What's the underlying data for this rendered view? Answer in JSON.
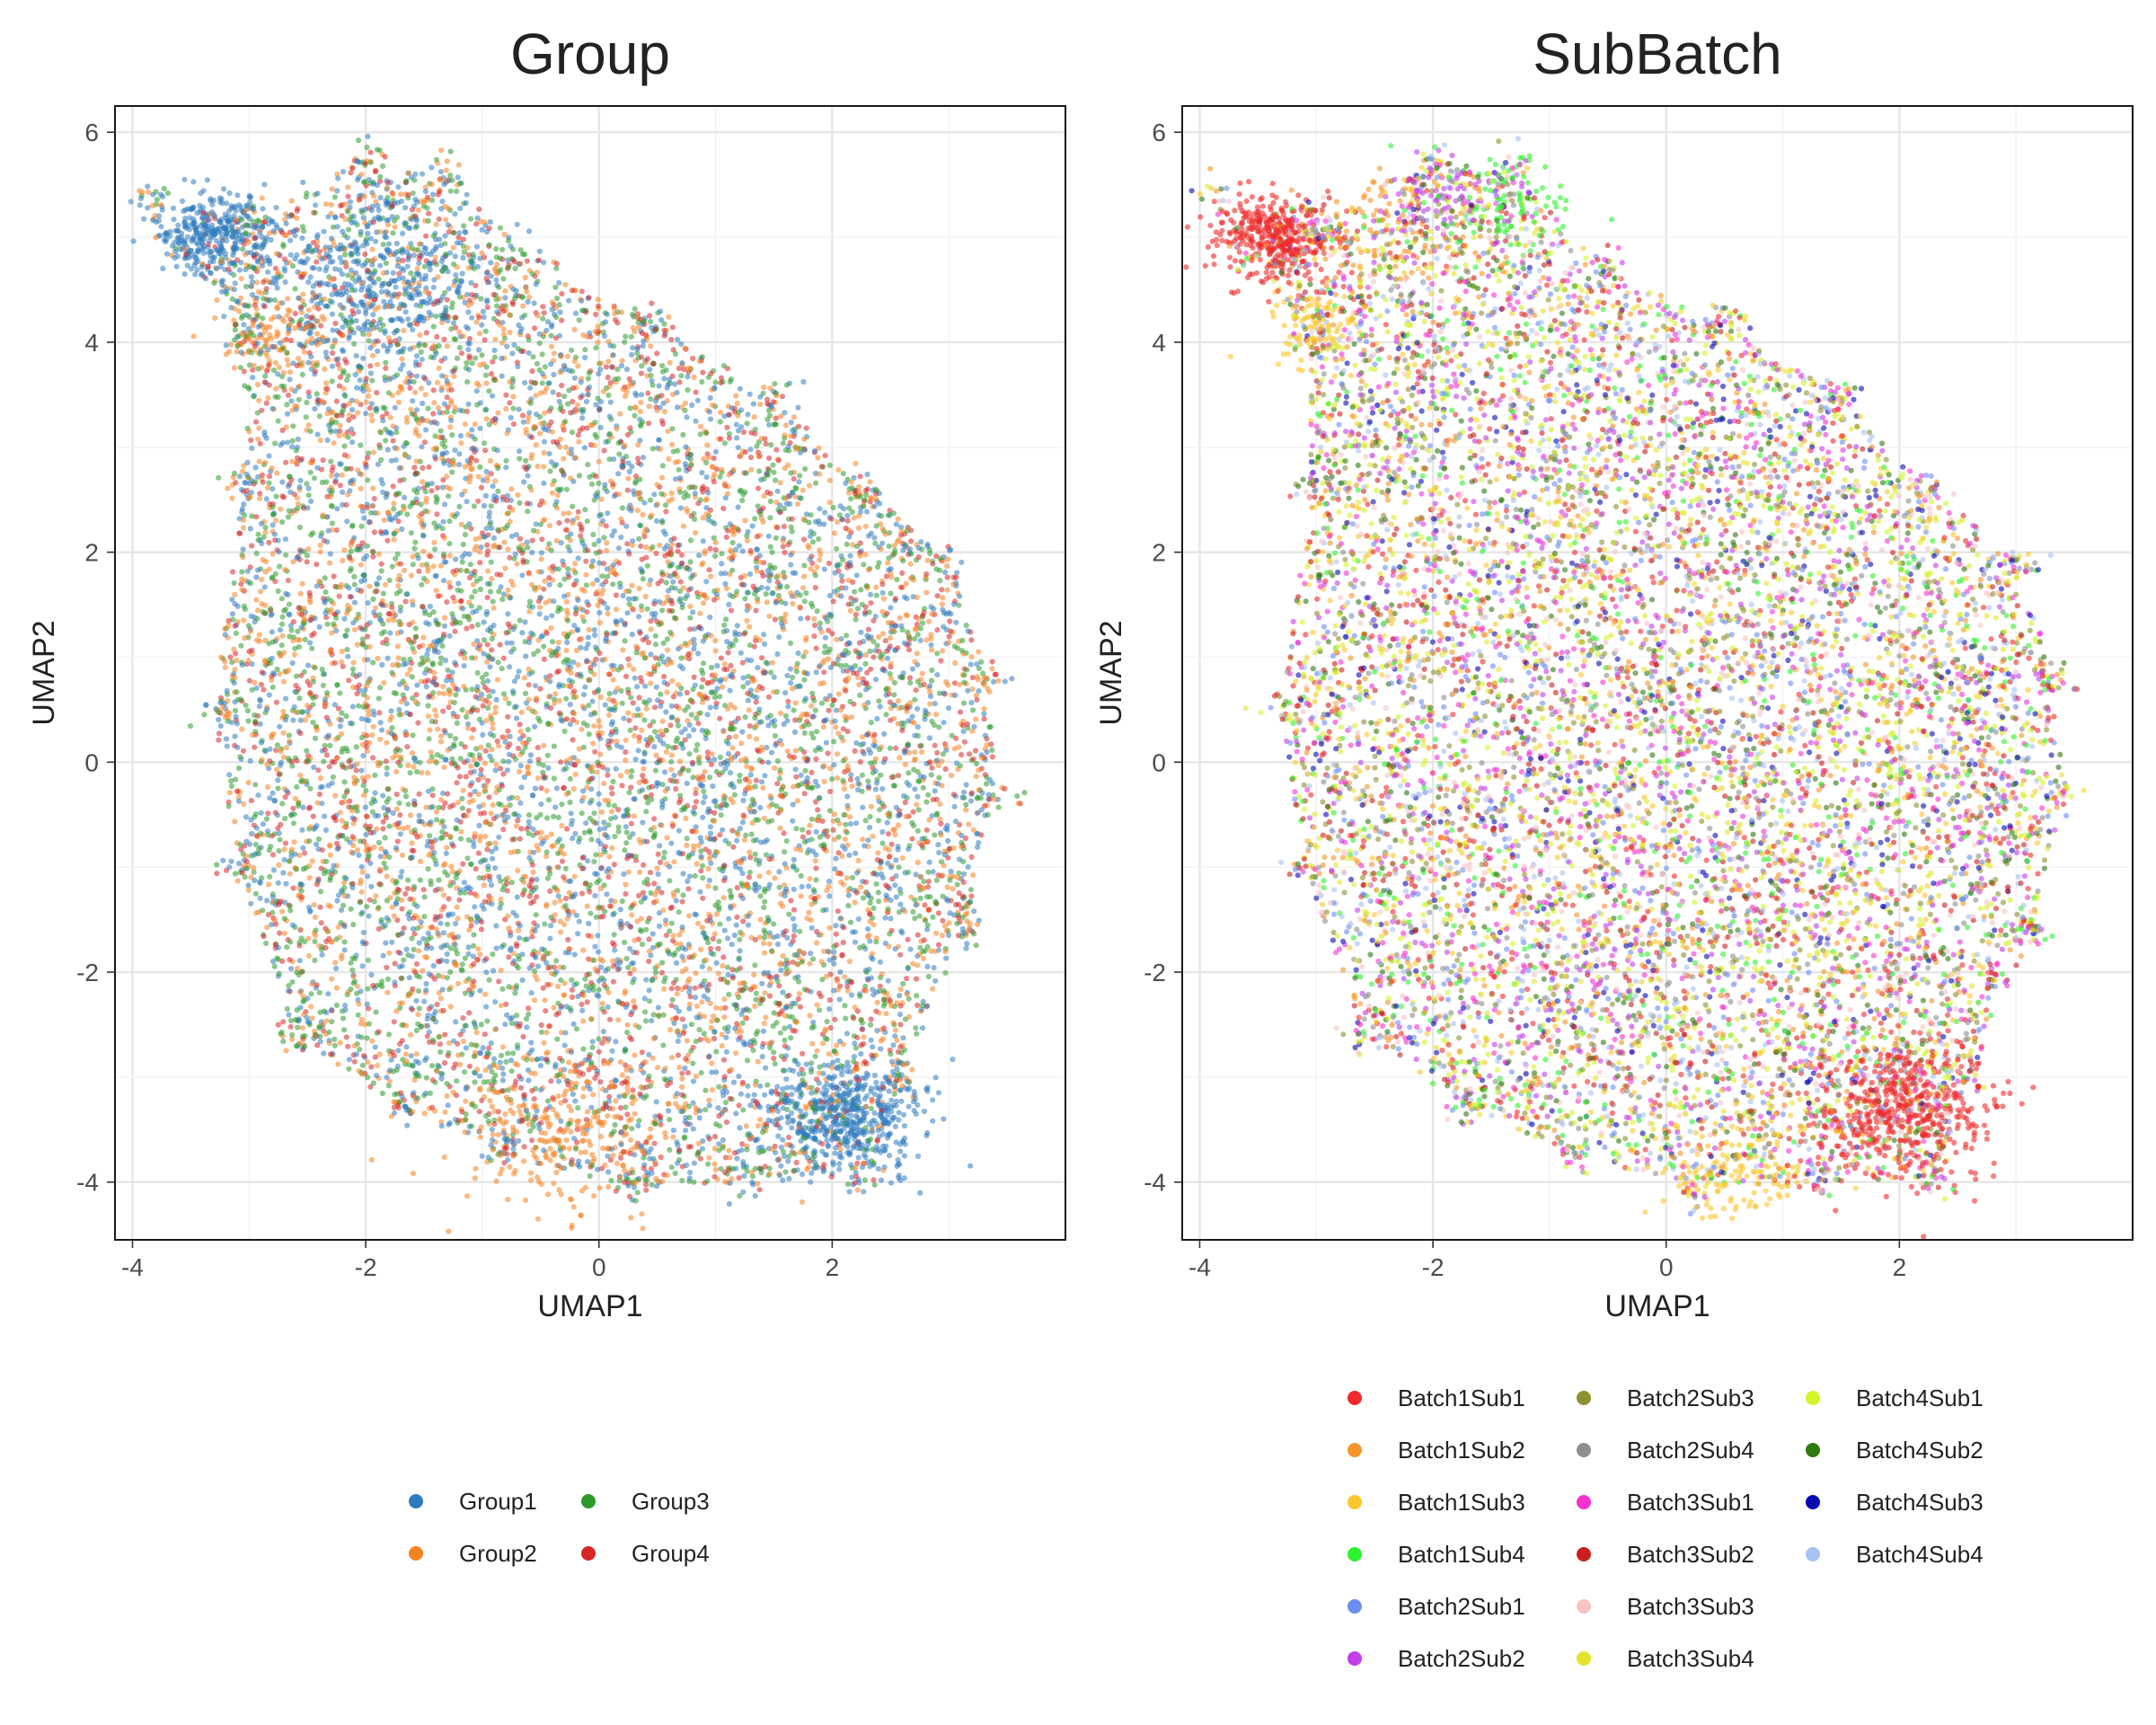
{
  "chart_data": [
    {
      "type": "scatter",
      "title": "Group",
      "xlabel": "UMAP1",
      "ylabel": "UMAP2",
      "xlim": [
        -4.15,
        4.0
      ],
      "ylim": [
        -4.55,
        6.25
      ],
      "x_ticks": [
        -4,
        -2,
        0,
        2
      ],
      "y_ticks": [
        -4,
        -2,
        0,
        2,
        4,
        6
      ],
      "x_tick_labels": [
        "-4",
        "-2",
        "0",
        "2"
      ],
      "y_tick_labels": [
        "-4",
        "-2",
        "0",
        "2",
        "4",
        "6"
      ],
      "grid": true,
      "legend_position": "bottom",
      "point_alpha": 0.55,
      "cloud_outline": [
        [
          -3.85,
          5.35
        ],
        [
          -3.0,
          5.15
        ],
        [
          -2.0,
          5.75
        ],
        [
          -1.3,
          5.6
        ],
        [
          -0.5,
          4.7
        ],
        [
          0.5,
          4.15
        ],
        [
          1.5,
          3.5
        ],
        [
          2.3,
          2.6
        ],
        [
          3.0,
          1.9
        ],
        [
          3.35,
          0.8
        ],
        [
          3.4,
          -0.3
        ],
        [
          3.15,
          -1.6
        ],
        [
          2.6,
          -3.0
        ],
        [
          2.3,
          -3.95
        ],
        [
          1.3,
          -4.0
        ],
        [
          0.3,
          -4.05
        ],
        [
          -0.8,
          -3.75
        ],
        [
          -1.7,
          -3.3
        ],
        [
          -2.6,
          -2.6
        ],
        [
          -3.1,
          -1.0
        ],
        [
          -3.3,
          0.5
        ],
        [
          -3.05,
          2.6
        ],
        [
          -3.05,
          4.0
        ],
        [
          -3.6,
          4.9
        ]
      ],
      "series": [
        {
          "name": "Group1",
          "color": "#2f7bbf",
          "weight": 0.28,
          "clusters": [
            {
              "center": [
                -3.3,
                5.0
              ],
              "spread": 0.25,
              "weight": 0.035
            },
            {
              "center": [
                2.1,
                -3.4
              ],
              "spread": 0.35,
              "weight": 0.05
            },
            {
              "center": [
                -1.9,
                4.6
              ],
              "spread": 0.5,
              "weight": 0.04
            }
          ]
        },
        {
          "name": "Group2",
          "color": "#f58220",
          "weight": 0.26,
          "clusters": [
            {
              "center": [
                -2.7,
                4.1
              ],
              "spread": 0.3,
              "weight": 0.01
            },
            {
              "center": [
                -0.3,
                -3.5
              ],
              "spread": 0.5,
              "weight": 0.025
            }
          ]
        },
        {
          "name": "Group3",
          "color": "#2e9a2e",
          "weight": 0.26,
          "clusters": []
        },
        {
          "name": "Group4",
          "color": "#d62728",
          "weight": 0.2,
          "clusters": []
        }
      ]
    },
    {
      "type": "scatter",
      "title": "SubBatch",
      "xlabel": "UMAP1",
      "ylabel": "UMAP2",
      "xlim": [
        -4.15,
        4.0
      ],
      "ylim": [
        -4.55,
        6.25
      ],
      "x_ticks": [
        -4,
        -2,
        0,
        2
      ],
      "y_ticks": [
        -4,
        -2,
        0,
        2,
        4,
        6
      ],
      "x_tick_labels": [
        "-4",
        "-2",
        "0",
        "2"
      ],
      "y_tick_labels": [
        "-4",
        "-2",
        "0",
        "2",
        "4",
        "6"
      ],
      "grid": true,
      "legend_position": "bottom",
      "point_alpha": 0.6,
      "cloud_outline": [
        [
          -3.85,
          5.35
        ],
        [
          -3.0,
          5.15
        ],
        [
          -2.0,
          5.75
        ],
        [
          -1.3,
          5.6
        ],
        [
          -0.5,
          4.7
        ],
        [
          0.5,
          4.15
        ],
        [
          1.5,
          3.5
        ],
        [
          2.3,
          2.6
        ],
        [
          3.0,
          1.9
        ],
        [
          3.35,
          0.8
        ],
        [
          3.4,
          -0.3
        ],
        [
          3.15,
          -1.6
        ],
        [
          2.6,
          -3.0
        ],
        [
          2.3,
          -3.95
        ],
        [
          1.3,
          -4.0
        ],
        [
          0.3,
          -4.05
        ],
        [
          -0.8,
          -3.75
        ],
        [
          -1.7,
          -3.3
        ],
        [
          -2.6,
          -2.6
        ],
        [
          -3.1,
          -1.0
        ],
        [
          -3.3,
          0.5
        ],
        [
          -3.05,
          2.6
        ],
        [
          -3.05,
          4.0
        ],
        [
          -3.6,
          4.9
        ]
      ],
      "series": [
        {
          "name": "Batch1Sub1",
          "color": "#ef2b2b",
          "weight": 0.06,
          "clusters": [
            {
              "center": [
                -3.4,
                5.0
              ],
              "spread": 0.25,
              "weight": 0.035
            },
            {
              "center": [
                2.0,
                -3.3
              ],
              "spread": 0.4,
              "weight": 0.05
            }
          ]
        },
        {
          "name": "Batch1Sub2",
          "color": "#f5952a",
          "weight": 0.06,
          "clusters": [
            {
              "center": [
                -2.4,
                5.0
              ],
              "spread": 0.35,
              "weight": 0.01
            }
          ]
        },
        {
          "name": "Batch1Sub3",
          "color": "#fcc72c",
          "weight": 0.06,
          "clusters": [
            {
              "center": [
                -3.0,
                4.15
              ],
              "spread": 0.2,
              "weight": 0.008
            },
            {
              "center": [
                0.6,
                -3.9
              ],
              "spread": 0.3,
              "weight": 0.012
            }
          ]
        },
        {
          "name": "Batch1Sub4",
          "color": "#2ef22e",
          "weight": 0.06,
          "clusters": [
            {
              "center": [
                -1.3,
                5.3
              ],
              "spread": 0.3,
              "weight": 0.008
            }
          ]
        },
        {
          "name": "Batch2Sub1",
          "color": "#6b8ef2",
          "weight": 0.06,
          "clusters": []
        },
        {
          "name": "Batch2Sub2",
          "color": "#c23ee8",
          "weight": 0.07,
          "clusters": [
            {
              "center": [
                -1.9,
                5.4
              ],
              "spread": 0.25,
              "weight": 0.006
            }
          ]
        },
        {
          "name": "Batch2Sub3",
          "color": "#8f9130",
          "weight": 0.06,
          "clusters": []
        },
        {
          "name": "Batch2Sub4",
          "color": "#8e8e8e",
          "weight": 0.05,
          "clusters": []
        },
        {
          "name": "Batch3Sub1",
          "color": "#f531d0",
          "weight": 0.07,
          "clusters": []
        },
        {
          "name": "Batch3Sub2",
          "color": "#c91f1f",
          "weight": 0.06,
          "clusters": []
        },
        {
          "name": "Batch3Sub3",
          "color": "#f7c3c3",
          "weight": 0.06,
          "clusters": []
        },
        {
          "name": "Batch3Sub4",
          "color": "#e4e42a",
          "weight": 0.07,
          "clusters": []
        },
        {
          "name": "Batch4Sub1",
          "color": "#d2f52a",
          "weight": 0.07,
          "clusters": []
        },
        {
          "name": "Batch4Sub2",
          "color": "#2f7a10",
          "weight": 0.05,
          "clusters": []
        },
        {
          "name": "Batch4Sub3",
          "color": "#0a0ab4",
          "weight": 0.04,
          "clusters": []
        },
        {
          "name": "Batch4Sub4",
          "color": "#a8c2f2",
          "weight": 0.06,
          "clusters": []
        }
      ]
    }
  ]
}
